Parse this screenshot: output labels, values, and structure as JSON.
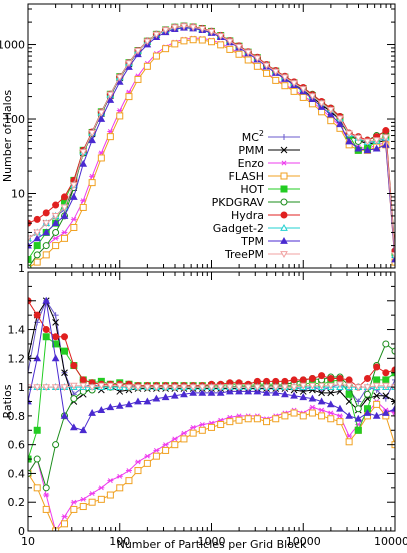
{
  "chart_data": [
    {
      "type": "line",
      "ylabel": "Number of Halos",
      "xlabel": "",
      "xscale": "log",
      "yscale": "log",
      "xlim": [
        10,
        100000
      ],
      "ylim": [
        1,
        3500
      ],
      "x_ticks": [
        "10",
        "100",
        "1000",
        "10000",
        "100000"
      ],
      "y_ticks": [
        "1",
        "10",
        "100",
        "1000"
      ],
      "show_x_tick_labels": false,
      "grid": false,
      "legend_placement": "right",
      "x": [
        10,
        12.6,
        15.8,
        20,
        25,
        31.6,
        40,
        50,
        63,
        79,
        100,
        126,
        158,
        200,
        251,
        316,
        398,
        501,
        631,
        794,
        1000,
        1259,
        1585,
        1995,
        2512,
        3162,
        3981,
        5012,
        6310,
        7943,
        10000,
        12589,
        15849,
        19953,
        25119,
        31623,
        39811,
        50119,
        63096,
        79433,
        100000
      ],
      "series": [
        {
          "name": "MC2",
          "marker": "plus",
          "color": "#6a5acd",
          "values": [
            2.5,
            3,
            4,
            5,
            6,
            13,
            36,
            65,
            120,
            210,
            360,
            560,
            820,
            1100,
            1360,
            1560,
            1700,
            1760,
            1700,
            1620,
            1480,
            1300,
            1100,
            930,
            780,
            650,
            520,
            430,
            360,
            300,
            250,
            200,
            160,
            130,
            100,
            62,
            55,
            48,
            50,
            55,
            1.5
          ]
        },
        {
          "name": "PMM",
          "marker": "x",
          "color": "#000000",
          "values": [
            2.5,
            3,
            4,
            5,
            6.5,
            12,
            35,
            63,
            118,
            205,
            355,
            550,
            810,
            1090,
            1350,
            1550,
            1690,
            1750,
            1690,
            1610,
            1470,
            1290,
            1090,
            920,
            770,
            645,
            515,
            425,
            355,
            295,
            245,
            195,
            155,
            125,
            98,
            60,
            52,
            46,
            48,
            52,
            1.5
          ]
        },
        {
          "name": "Enzo",
          "marker": "star",
          "color": "#ee3bee",
          "values": [
            1,
            1.5,
            2,
            2.5,
            3,
            4.5,
            8,
            17,
            35,
            68,
            130,
            230,
            380,
            560,
            760,
            930,
            1080,
            1180,
            1220,
            1210,
            1150,
            1040,
            900,
            770,
            640,
            520,
            420,
            340,
            290,
            245,
            205,
            170,
            135,
            105,
            80,
            50,
            42,
            40,
            45,
            48,
            1.2
          ]
        },
        {
          "name": "FLASH",
          "marker": "square",
          "color": "#f0a020",
          "values": [
            1,
            1.2,
            1.5,
            2,
            2.5,
            3.5,
            6.5,
            14,
            30,
            58,
            110,
            200,
            340,
            510,
            700,
            880,
            1020,
            1120,
            1160,
            1150,
            1090,
            990,
            860,
            740,
            620,
            510,
            410,
            330,
            280,
            235,
            195,
            160,
            125,
            95,
            75,
            45,
            38,
            38,
            42,
            45,
            1.2
          ]
        },
        {
          "name": "HOT",
          "marker": "filled-square",
          "color": "#22cc22",
          "values": [
            1.3,
            2,
            3,
            4,
            8,
            15,
            38,
            66,
            125,
            215,
            370,
            570,
            830,
            1110,
            1370,
            1570,
            1710,
            1770,
            1720,
            1640,
            1500,
            1320,
            1120,
            950,
            790,
            665,
            530,
            440,
            365,
            305,
            255,
            205,
            165,
            135,
            105,
            60,
            38,
            40,
            52,
            58,
            1.6
          ]
        },
        {
          "name": "PKDGRAV",
          "marker": "circle",
          "color": "#1a8c1a",
          "values": [
            1,
            1.5,
            2,
            3,
            5,
            12,
            35,
            64,
            122,
            212,
            365,
            565,
            825,
            1105,
            1365,
            1565,
            1705,
            1765,
            1715,
            1635,
            1495,
            1315,
            1115,
            945,
            785,
            660,
            528,
            438,
            368,
            310,
            262,
            215,
            170,
            140,
            108,
            64,
            50,
            52,
            60,
            68,
            1.7
          ]
        },
        {
          "name": "Hydra",
          "marker": "filled-circle",
          "color": "#e02020",
          "values": [
            4,
            4.5,
            5.5,
            7,
            9,
            15,
            38,
            67,
            124,
            215,
            368,
            570,
            832,
            1115,
            1375,
            1575,
            1715,
            1775,
            1725,
            1645,
            1505,
            1325,
            1130,
            960,
            800,
            675,
            540,
            448,
            375,
            315,
            265,
            212,
            172,
            140,
            108,
            65,
            58,
            52,
            58,
            70,
            1.7
          ]
        },
        {
          "name": "Gadget-2",
          "marker": "triangle",
          "color": "#20d0d0",
          "values": [
            2.5,
            3,
            4,
            5,
            6.5,
            13,
            36,
            65,
            121,
            211,
            362,
            562,
            822,
            1102,
            1362,
            1562,
            1702,
            1762,
            1702,
            1622,
            1482,
            1302,
            1102,
            932,
            782,
            652,
            522,
            432,
            362,
            302,
            252,
            202,
            162,
            132,
            101,
            63,
            56,
            49,
            51,
            56,
            1.5
          ]
        },
        {
          "name": "TPM",
          "marker": "filled-triangle",
          "color": "#4a2ad0",
          "values": [
            2,
            2.5,
            3,
            4,
            5,
            9,
            25,
            52,
            100,
            180,
            315,
            500,
            740,
            1000,
            1260,
            1460,
            1610,
            1680,
            1640,
            1560,
            1430,
            1260,
            1070,
            910,
            760,
            630,
            505,
            415,
            345,
            285,
            235,
            185,
            145,
            115,
            85,
            50,
            40,
            38,
            40,
            45,
            1.3
          ]
        },
        {
          "name": "TreePM",
          "marker": "down-triangle",
          "color": "#f0a0a0",
          "values": [
            2.5,
            3,
            4,
            5,
            6.5,
            13,
            36,
            65,
            122,
            213,
            363,
            563,
            823,
            1103,
            1363,
            1563,
            1703,
            1763,
            1703,
            1623,
            1483,
            1303,
            1103,
            933,
            783,
            653,
            523,
            433,
            363,
            303,
            253,
            203,
            163,
            133,
            102,
            64,
            56,
            50,
            52,
            57,
            1.5
          ]
        }
      ]
    },
    {
      "type": "line",
      "xlabel": "Number of Particles per Grid Block",
      "ylabel": "Ratios",
      "xscale": "log",
      "yscale": "linear",
      "xlim": [
        10,
        100000
      ],
      "ylim": [
        0,
        1.8
      ],
      "x_ticks": [
        "10",
        "100",
        "1000",
        "10000",
        "100000"
      ],
      "y_ticks": [
        "0",
        "0.2",
        "0.4",
        "0.6",
        "0.8",
        "1",
        "1.2",
        "1.4"
      ],
      "grid": false,
      "x": [
        10,
        12.6,
        15.8,
        20,
        25,
        31.6,
        40,
        50,
        63,
        79,
        100,
        126,
        158,
        200,
        251,
        316,
        398,
        501,
        631,
        794,
        1000,
        1259,
        1585,
        1995,
        2512,
        3162,
        3981,
        5012,
        6310,
        7943,
        10000,
        12589,
        15849,
        19953,
        25119,
        31623,
        39811,
        50119,
        63096,
        79433,
        100000
      ],
      "series": [
        {
          "name": "MC2",
          "marker": "plus",
          "color": "#6a5acd",
          "values": [
            1.1,
            1.45,
            1.6,
            1.5,
            1.1,
            0.95,
            1.0,
            1.02,
            1.0,
            1.01,
            1.0,
            1.01,
            1.0,
            1.0,
            1.01,
            1.0,
            1.0,
            1.0,
            1.0,
            1.0,
            1.0,
            1.0,
            1.0,
            1.0,
            1.0,
            1.0,
            1.0,
            1.0,
            1.01,
            1.0,
            0.98,
            1.0,
            0.98,
            1.0,
            1.02,
            0.98,
            0.9,
            1.0,
            0.98,
            0.92,
            1.05
          ]
        },
        {
          "name": "PMM",
          "marker": "x",
          "color": "#000000",
          "values": [
            1.2,
            1.5,
            1.6,
            1.45,
            1.1,
            0.9,
            0.95,
            1.0,
            0.98,
            1.0,
            0.97,
            0.98,
            0.99,
            0.99,
            0.99,
            0.99,
            0.99,
            0.99,
            0.99,
            0.99,
            0.99,
            0.99,
            0.99,
            0.99,
            0.99,
            0.99,
            0.99,
            0.99,
            0.99,
            0.98,
            0.97,
            0.98,
            0.96,
            0.96,
            0.97,
            0.9,
            0.84,
            0.92,
            0.94,
            0.94,
            0.9
          ]
        },
        {
          "name": "Enzo",
          "marker": "star",
          "color": "#ee3bee",
          "values": [
            0.4,
            0.5,
            0.25,
            0.0,
            0.1,
            0.2,
            0.22,
            0.26,
            0.3,
            0.35,
            0.38,
            0.42,
            0.48,
            0.52,
            0.56,
            0.6,
            0.64,
            0.68,
            0.72,
            0.74,
            0.75,
            0.77,
            0.79,
            0.8,
            0.8,
            0.8,
            0.78,
            0.8,
            0.82,
            0.84,
            0.82,
            0.86,
            0.84,
            0.82,
            0.8,
            0.66,
            0.74,
            0.82,
            0.9,
            0.84,
            0.82
          ]
        },
        {
          "name": "FLASH",
          "marker": "square",
          "color": "#f0a020",
          "values": [
            0.4,
            0.3,
            0.15,
            0.0,
            0.05,
            0.15,
            0.17,
            0.2,
            0.22,
            0.25,
            0.3,
            0.35,
            0.42,
            0.47,
            0.52,
            0.56,
            0.6,
            0.64,
            0.68,
            0.7,
            0.72,
            0.74,
            0.76,
            0.77,
            0.78,
            0.78,
            0.76,
            0.78,
            0.8,
            0.82,
            0.8,
            0.82,
            0.8,
            0.78,
            0.76,
            0.62,
            0.7,
            0.8,
            0.88,
            0.8,
            0.6
          ]
        },
        {
          "name": "HOT",
          "marker": "filled-square",
          "color": "#22cc22",
          "values": [
            0.5,
            0.7,
            1.35,
            1.3,
            1.25,
            1.15,
            1.05,
            1.03,
            1.04,
            1.02,
            1.03,
            1.02,
            1.01,
            1.01,
            1.01,
            1.01,
            1.01,
            1.01,
            1.01,
            1.01,
            1.01,
            1.01,
            1.02,
            1.02,
            1.01,
            1.02,
            1.02,
            1.02,
            1.01,
            1.01,
            1.02,
            1.03,
            1.02,
            1.04,
            1.05,
            0.95,
            0.7,
            0.85,
            1.05,
            1.05,
            1.1
          ]
        },
        {
          "name": "PKDGRAV",
          "marker": "circle",
          "color": "#1a8c1a",
          "values": [
            0.4,
            0.5,
            0.3,
            0.6,
            0.8,
            0.92,
            0.97,
            0.98,
            1.01,
            1.0,
            1.01,
            1.0,
            1.0,
            1.0,
            1.0,
            1.0,
            1.0,
            1.0,
            1.0,
            1.0,
            1.0,
            1.0,
            1.0,
            1.01,
            1.0,
            1.01,
            1.01,
            1.01,
            1.02,
            1.03,
            1.05,
            1.06,
            1.05,
            1.07,
            1.07,
            1.01,
            0.85,
            0.95,
            1.15,
            1.3,
            1.25
          ]
        },
        {
          "name": "Hydra",
          "marker": "filled-circle",
          "color": "#e02020",
          "values": [
            1.6,
            1.5,
            1.4,
            1.35,
            1.35,
            1.15,
            1.05,
            1.03,
            1.02,
            1.02,
            1.02,
            1.02,
            1.01,
            1.01,
            1.01,
            1.01,
            1.01,
            1.01,
            1.01,
            1.01,
            1.02,
            1.02,
            1.03,
            1.03,
            1.02,
            1.04,
            1.04,
            1.04,
            1.04,
            1.05,
            1.05,
            1.06,
            1.08,
            1.06,
            1.06,
            1.05,
            1.0,
            1.06,
            1.14,
            1.1,
            1.12
          ]
        },
        {
          "name": "Gadget-2",
          "marker": "triangle",
          "color": "#20d0d0",
          "values": [
            1.0,
            1.0,
            1.0,
            1.0,
            1.0,
            1.0,
            1.0,
            1.0,
            1.0,
            1.0,
            1.0,
            1.0,
            1.0,
            1.0,
            1.0,
            1.0,
            1.0,
            1.0,
            1.0,
            1.0,
            1.0,
            1.0,
            1.0,
            1.0,
            1.0,
            1.0,
            1.0,
            1.0,
            1.0,
            1.0,
            1.0,
            1.0,
            1.0,
            1.0,
            1.0,
            1.0,
            1.0,
            1.0,
            1.0,
            1.0,
            1.0
          ]
        },
        {
          "name": "TPM",
          "marker": "filled-triangle",
          "color": "#4a2ad0",
          "values": [
            0.9,
            1.2,
            1.6,
            1.2,
            0.8,
            0.72,
            0.7,
            0.82,
            0.84,
            0.86,
            0.87,
            0.88,
            0.9,
            0.9,
            0.92,
            0.93,
            0.94,
            0.95,
            0.96,
            0.96,
            0.96,
            0.96,
            0.97,
            0.97,
            0.97,
            0.97,
            0.96,
            0.96,
            0.95,
            0.94,
            0.93,
            0.92,
            0.9,
            0.88,
            0.85,
            0.8,
            0.78,
            0.82,
            0.8,
            0.82,
            0.85
          ]
        },
        {
          "name": "TreePM",
          "marker": "down-triangle",
          "color": "#f0a0a0",
          "values": [
            1.0,
            1.0,
            1.0,
            1.0,
            1.0,
            1.01,
            1.01,
            1.0,
            1.01,
            1.01,
            1.01,
            1.0,
            1.0,
            1.0,
            1.0,
            1.0,
            1.0,
            1.0,
            1.0,
            1.0,
            1.0,
            1.0,
            1.0,
            1.0,
            1.0,
            1.0,
            1.0,
            1.0,
            1.0,
            1.0,
            1.01,
            1.01,
            1.01,
            1.01,
            1.02,
            1.01,
            1.0,
            1.0,
            1.01,
            1.01,
            1.0
          ]
        }
      ]
    }
  ],
  "legend": {
    "entries": [
      "MC2",
      "PMM",
      "Enzo",
      "FLASH",
      "HOT",
      "PKDGRAV",
      "Hydra",
      "Gadget-2",
      "TPM",
      "TreePM"
    ],
    "first_entry": {
      "base": "MC",
      "superscript": "2"
    }
  }
}
